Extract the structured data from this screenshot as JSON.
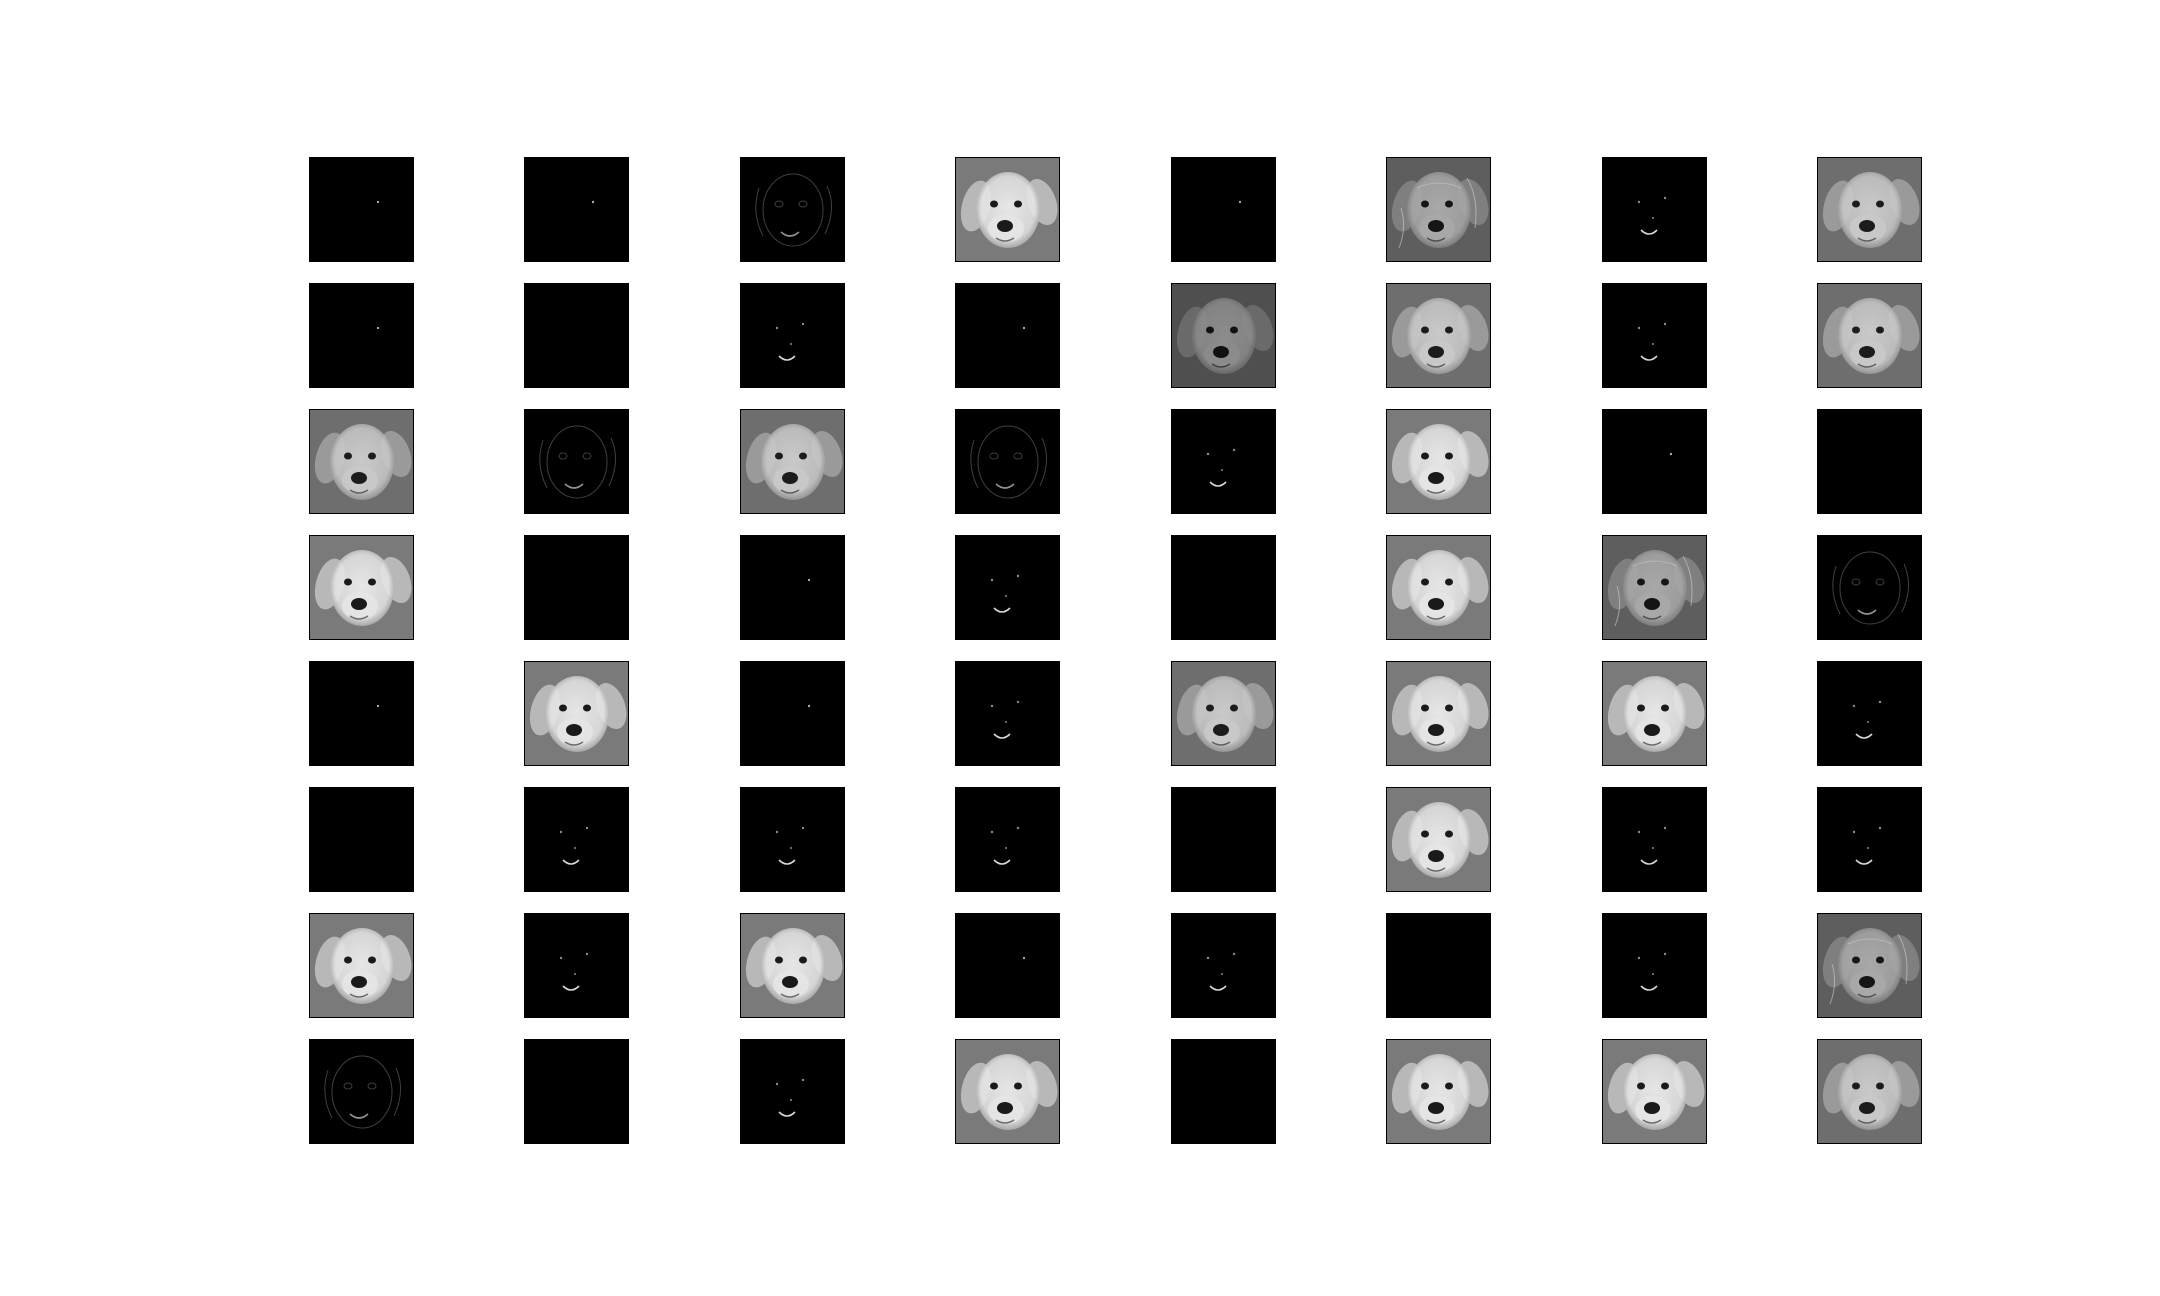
{
  "figure": {
    "rows": 8,
    "cols": 8,
    "colors": {
      "background": "#ffffff",
      "frame": "#000000",
      "black": "#000000"
    },
    "maps": [
      "sparse",
      "sparse",
      "faint",
      "bright",
      "sparse",
      "texture",
      "dim",
      "gray",
      "sparse",
      "blank",
      "dim",
      "sparse",
      "mid",
      "gray",
      "dim",
      "gray",
      "gray",
      "faint",
      "gray",
      "faint",
      "dim",
      "bright",
      "sparse",
      "blank",
      "bright",
      "blank",
      "sparse",
      "dim",
      "blank",
      "bright",
      "texture",
      "faint",
      "sparse",
      "bright",
      "sparse",
      "dim",
      "gray",
      "bright",
      "bright",
      "dim",
      "blank",
      "dim",
      "dim",
      "dim",
      "blank",
      "bright",
      "dim",
      "dim",
      "bright",
      "dim",
      "bright",
      "sparse",
      "dim",
      "blank",
      "dim",
      "texture",
      "faint",
      "blank",
      "dim",
      "bright",
      "blank",
      "bright",
      "bright",
      "gray"
    ]
  }
}
